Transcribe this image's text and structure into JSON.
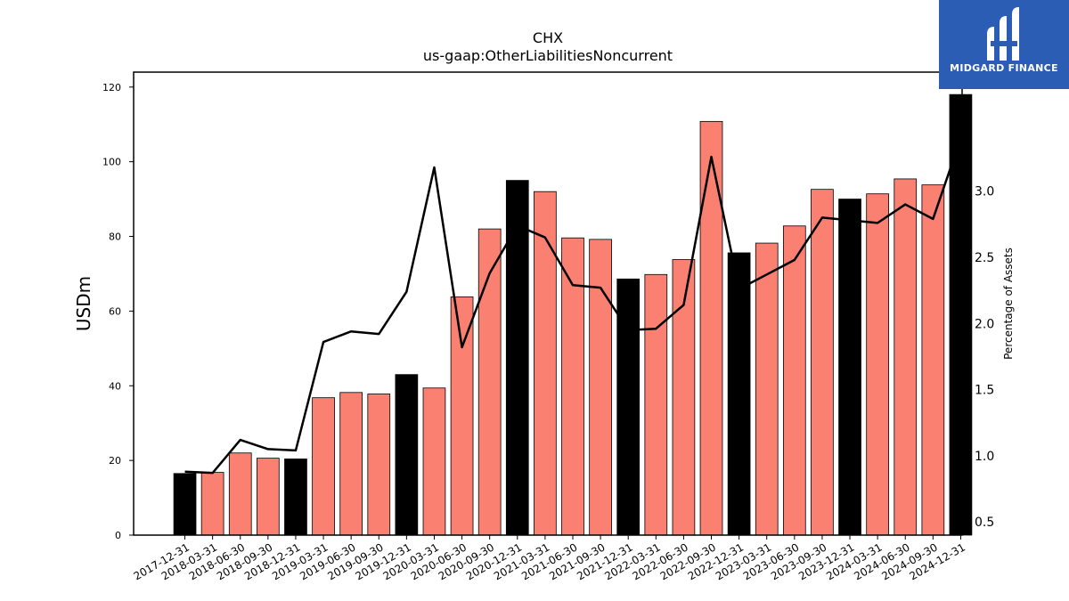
{
  "branding": {
    "logo_text": "MIDGARD FINANCE",
    "background_color": "#2c5db5"
  },
  "chart_data": {
    "type": "bar",
    "title": "CHX",
    "subtitle": "us-gaap:OtherLiabilitiesNoncurrent",
    "ylabel": "USDm",
    "y2label": "Percentage of Assets",
    "ylim": [
      0,
      124
    ],
    "y2lim": [
      0.4,
      3.9
    ],
    "yticks": [
      0,
      20,
      40,
      60,
      80,
      100,
      120
    ],
    "y2ticks": [
      "0.5",
      "1.0",
      "1.5",
      "2.0",
      "2.5",
      "3.0"
    ],
    "grid": false,
    "categories": [
      "2017-12-31",
      "2018-03-31",
      "2018-06-30",
      "2018-09-30",
      "2018-12-31",
      "2019-03-31",
      "2019-06-30",
      "2019-09-30",
      "2019-12-31",
      "2020-03-31",
      "2020-06-30",
      "2020-09-30",
      "2020-12-31",
      "2021-03-31",
      "2021-06-30",
      "2021-09-30",
      "2021-12-31",
      "2022-03-31",
      "2022-06-30",
      "2022-09-30",
      "2022-12-31",
      "2023-03-31",
      "2023-06-30",
      "2023-09-30",
      "2023-12-31",
      "2024-03-31",
      "2024-06-30",
      "2024-09-30",
      "2024-12-31"
    ],
    "series": [
      {
        "type": "bar",
        "axis": "left",
        "values": [
          16.5,
          16.8,
          22.0,
          20.6,
          20.4,
          36.8,
          38.2,
          37.8,
          43.0,
          39.4,
          63.8,
          82.0,
          95.0,
          92.0,
          79.6,
          79.2,
          68.6,
          69.8,
          73.8,
          110.8,
          75.6,
          78.2,
          82.8,
          92.6,
          90.0,
          91.4,
          95.4,
          93.8,
          118.0
        ],
        "fiscal_year_end": [
          true,
          false,
          false,
          false,
          true,
          false,
          false,
          false,
          true,
          false,
          false,
          false,
          true,
          false,
          false,
          false,
          true,
          false,
          false,
          false,
          true,
          false,
          false,
          false,
          true,
          false,
          false,
          false,
          true
        ]
      },
      {
        "type": "line",
        "axis": "right",
        "values": [
          0.88,
          0.87,
          1.12,
          1.05,
          1.04,
          1.86,
          1.94,
          1.92,
          2.24,
          3.18,
          1.82,
          2.38,
          2.74,
          2.65,
          2.29,
          2.27,
          1.95,
          1.96,
          2.14,
          3.26,
          2.26,
          2.37,
          2.48,
          2.8,
          2.78,
          2.76,
          2.9,
          2.79,
          3.4
        ]
      }
    ],
    "colors": {
      "bar_quarter": "#fa8072",
      "bar_year_end": "#000000",
      "line": "#000000"
    }
  }
}
